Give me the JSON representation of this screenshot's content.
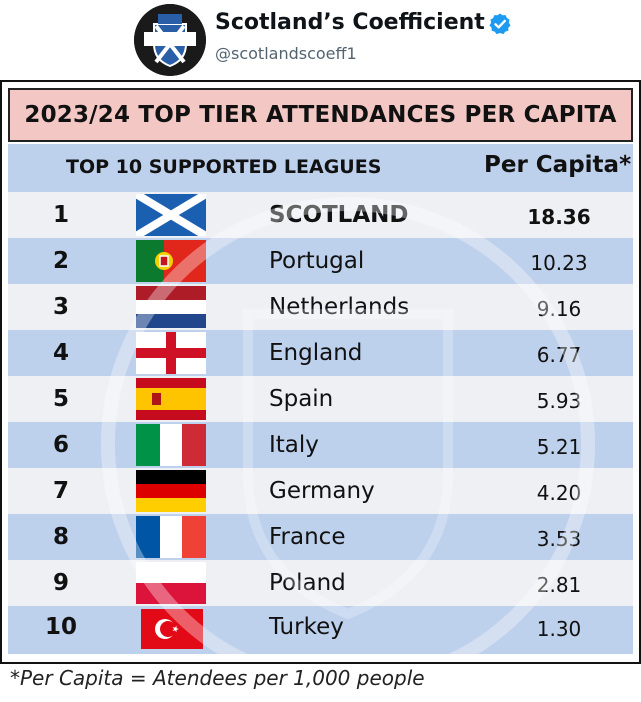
{
  "account": {
    "name": "Scotland’s Coefficient",
    "handle": "@scotlandscoeff1",
    "avatar_text": "SCOTLAND'S COEFFICIENT"
  },
  "graphic": {
    "title": "2023/24 TOP TIER ATTENDANCES PER CAPITA",
    "column_left": "TOP 10 SUPPORTED LEAGUES",
    "column_right": "Per Capita*",
    "rows": [
      {
        "rank": "1",
        "country": "SCOTLAND",
        "value": "18.36",
        "flag": "scotland-flag-icon"
      },
      {
        "rank": "2",
        "country": "Portugal",
        "value": "10.23",
        "flag": "portugal-flag-icon"
      },
      {
        "rank": "3",
        "country": "Netherlands",
        "value": "9.16",
        "flag": "netherlands-flag-icon"
      },
      {
        "rank": "4",
        "country": "England",
        "value": "6.77",
        "flag": "england-flag-icon"
      },
      {
        "rank": "5",
        "country": "Spain",
        "value": "5.93",
        "flag": "spain-flag-icon"
      },
      {
        "rank": "6",
        "country": "Italy",
        "value": "5.21",
        "flag": "italy-flag-icon"
      },
      {
        "rank": "7",
        "country": "Germany",
        "value": "4.20",
        "flag": "germany-flag-icon"
      },
      {
        "rank": "8",
        "country": "France",
        "value": "3.53",
        "flag": "france-flag-icon"
      },
      {
        "rank": "9",
        "country": "Poland",
        "value": "2.81",
        "flag": "poland-flag-icon"
      },
      {
        "rank": "10",
        "country": "Turkey",
        "value": "1.30",
        "flag": "turkey-flag-icon"
      }
    ],
    "footnote": "*Per Capita = Atendees per 1,000 people"
  },
  "colors": {
    "title_bg": "#f3c7c4",
    "row_blue": "#bdd0ec",
    "row_light": "#eef0f4",
    "verified": "#1d9bf0"
  }
}
